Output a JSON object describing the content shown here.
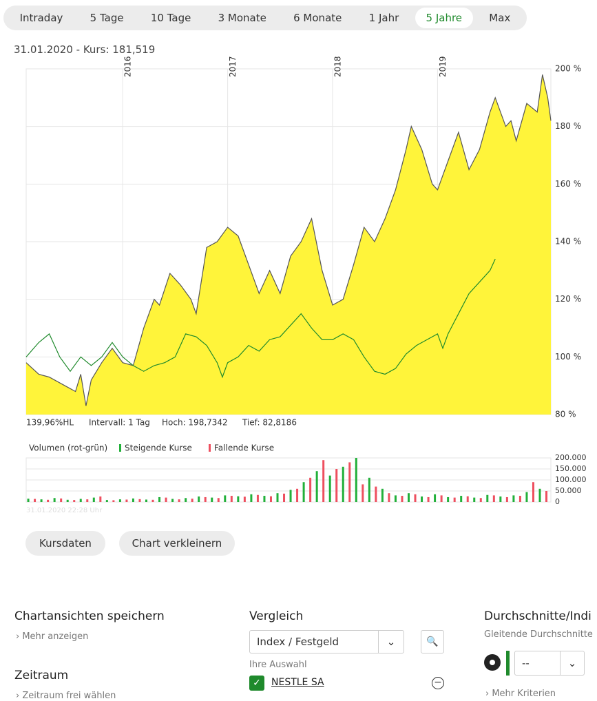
{
  "tabs": [
    "Intraday",
    "5 Tage",
    "10 Tage",
    "3 Monate",
    "6 Monate",
    "1 Jahr",
    "5 Jahre",
    "Max"
  ],
  "active_tab": 6,
  "quote": "31.01.2020  -  Kurs: 181,519",
  "chart_data": [
    {
      "type": "line",
      "xlim": [
        2015.08,
        2020.08
      ],
      "xticks": [
        2016,
        2017,
        2018,
        2019
      ],
      "ylim": [
        80,
        200
      ],
      "yticks": [
        {
          "value": 80,
          "label": "80 %"
        },
        {
          "value": 100,
          "label": "100 %"
        },
        {
          "value": 120,
          "label": "120 %"
        },
        {
          "value": 140,
          "label": "140 %"
        },
        {
          "value": 160,
          "label": "160 %"
        },
        {
          "value": 180,
          "label": "180 %"
        },
        {
          "value": 200,
          "label": "200 %"
        }
      ],
      "grid": true,
      "series": [
        {
          "color": "#555555",
          "fill": "#fff43a",
          "x": [
            2015.08,
            2015.2,
            2015.3,
            2015.45,
            2015.55,
            2015.6,
            2015.65,
            2015.7,
            2015.8,
            2015.9,
            2016.0,
            2016.1,
            2016.2,
            2016.3,
            2016.35,
            2016.45,
            2016.55,
            2016.65,
            2016.7,
            2016.8,
            2016.9,
            2017.0,
            2017.1,
            2017.2,
            2017.3,
            2017.4,
            2017.5,
            2017.6,
            2017.7,
            2017.8,
            2017.9,
            2018.0,
            2018.1,
            2018.2,
            2018.3,
            2018.4,
            2018.5,
            2018.6,
            2018.7,
            2018.75,
            2018.85,
            2018.95,
            2019.0,
            2019.1,
            2019.2,
            2019.3,
            2019.4,
            2019.5,
            2019.55,
            2019.65,
            2019.7,
            2019.75,
            2019.85,
            2019.95,
            2020.0,
            2020.05,
            2020.08
          ],
          "values": [
            98,
            94,
            93,
            90,
            88,
            94,
            83,
            92,
            98,
            103,
            98,
            97,
            110,
            120,
            118,
            129,
            125,
            120,
            115,
            138,
            140,
            145,
            142,
            132,
            122,
            130,
            122,
            135,
            140,
            148,
            130,
            118,
            120,
            132,
            145,
            140,
            148,
            158,
            172,
            180,
            172,
            160,
            158,
            168,
            178,
            165,
            172,
            185,
            190,
            180,
            182,
            175,
            188,
            185,
            198,
            190,
            182
          ]
        },
        {
          "color": "#1f8a2c",
          "x": [
            2015.08,
            2015.2,
            2015.3,
            2015.4,
            2015.5,
            2015.6,
            2015.7,
            2015.8,
            2015.9,
            2016.0,
            2016.1,
            2016.2,
            2016.3,
            2016.4,
            2016.5,
            2016.6,
            2016.7,
            2016.8,
            2016.9,
            2016.95,
            2017.0,
            2017.1,
            2017.2,
            2017.3,
            2017.4,
            2017.5,
            2017.6,
            2017.7,
            2017.8,
            2017.9,
            2018.0,
            2018.1,
            2018.2,
            2018.3,
            2018.4,
            2018.5,
            2018.6,
            2018.7,
            2018.8,
            2018.9,
            2019.0,
            2019.05,
            2019.1,
            2019.2,
            2019.3,
            2019.4,
            2019.5,
            2019.55
          ],
          "values": [
            100,
            105,
            108,
            100,
            95,
            100,
            97,
            100,
            105,
            100,
            97,
            95,
            97,
            98,
            100,
            108,
            107,
            104,
            98,
            93,
            98,
            100,
            104,
            102,
            106,
            107,
            111,
            115,
            110,
            106,
            106,
            108,
            106,
            100,
            95,
            94,
            96,
            101,
            104,
            106,
            108,
            103,
            108,
            115,
            122,
            126,
            130,
            134
          ]
        }
      ]
    },
    {
      "type": "bar",
      "title": "Volumen (rot-grün)",
      "legend": true,
      "xlim": [
        2015.08,
        2020.08
      ],
      "ylim": [
        0,
        200000
      ],
      "yticks": [
        0,
        {
          "value": 50000,
          "label": "50.000"
        },
        {
          "value": 100000,
          "label": "100.000"
        },
        {
          "value": 150000,
          "label": "150.000"
        },
        {
          "value": 200000,
          "label": "200.000"
        }
      ],
      "grid": true,
      "series": [
        {
          "name": "Steigende Kurse",
          "color": "#22b03a",
          "x": [
            2015.1,
            2015.225,
            2015.35,
            2015.475,
            2015.6,
            2015.725,
            2015.85,
            2015.975,
            2016.1,
            2016.225,
            2016.35,
            2016.475,
            2016.6,
            2016.725,
            2016.85,
            2016.975,
            2017.1,
            2017.225,
            2017.35,
            2017.475,
            2017.6,
            2017.725,
            2017.85,
            2017.975,
            2018.1,
            2018.225,
            2018.35,
            2018.475,
            2018.6,
            2018.725,
            2018.85,
            2018.975,
            2019.1,
            2019.225,
            2019.35,
            2019.475,
            2019.6,
            2019.725,
            2019.85,
            2019.975
          ],
          "values": [
            15000,
            12000,
            18000,
            10000,
            14000,
            20000,
            9000,
            12000,
            16000,
            11000,
            22000,
            14000,
            18000,
            25000,
            20000,
            30000,
            26000,
            35000,
            28000,
            40000,
            55000,
            90000,
            140000,
            120000,
            160000,
            200000,
            110000,
            60000,
            30000,
            40000,
            25000,
            35000,
            22000,
            28000,
            20000,
            32000,
            25000,
            30000,
            45000,
            60000
          ]
        },
        {
          "name": "Fallende Kurse",
          "color": "#ee4f5f",
          "x": [
            2015.1625,
            2015.2875,
            2015.4125,
            2015.5375,
            2015.6625,
            2015.7875,
            2015.9125,
            2016.0375,
            2016.1625,
            2016.2875,
            2016.4125,
            2016.5375,
            2016.6625,
            2016.7875,
            2016.9125,
            2017.0375,
            2017.1625,
            2017.2875,
            2017.4125,
            2017.5375,
            2017.6625,
            2017.7875,
            2017.9125,
            2018.0375,
            2018.1625,
            2018.2875,
            2018.4125,
            2018.5375,
            2018.6625,
            2018.7875,
            2018.9125,
            2019.0375,
            2019.1625,
            2019.2875,
            2019.4125,
            2019.5375,
            2019.6625,
            2019.7875,
            2019.9125,
            2020.0375
          ],
          "values": [
            14000,
            10000,
            16000,
            9000,
            12000,
            25000,
            8000,
            11000,
            13000,
            10000,
            20000,
            12000,
            15000,
            22000,
            18000,
            28000,
            24000,
            32000,
            26000,
            38000,
            60000,
            110000,
            190000,
            150000,
            180000,
            80000,
            70000,
            40000,
            28000,
            35000,
            22000,
            30000,
            20000,
            26000,
            18000,
            30000,
            22000,
            28000,
            90000,
            50000
          ]
        }
      ]
    }
  ],
  "stats": [
    "139,96%HL",
    "Intervall: 1 Tag",
    "Hoch: 198,7342",
    "Tief: 82,8186"
  ],
  "timestamp": "31.01.2020 22:28 Uhr",
  "buttons": [
    "Kursdaten",
    "Chart verkleinern"
  ],
  "panels": {
    "save": {
      "title": "Chartansichten speichern",
      "link": "Mehr anzeigen"
    },
    "range": {
      "title": "Zeitraum",
      "link": "Zeitraum frei wählen"
    },
    "compare": {
      "title": "Vergleich",
      "select": "Index / Festgeld",
      "caption": "Ihre Auswahl",
      "item": "NESTLE SA"
    },
    "averages": {
      "title": "Durchschnitte/Indi",
      "caption": "Gleitende Durchschnitte",
      "select": "--",
      "link": "Mehr Kriterien"
    }
  }
}
